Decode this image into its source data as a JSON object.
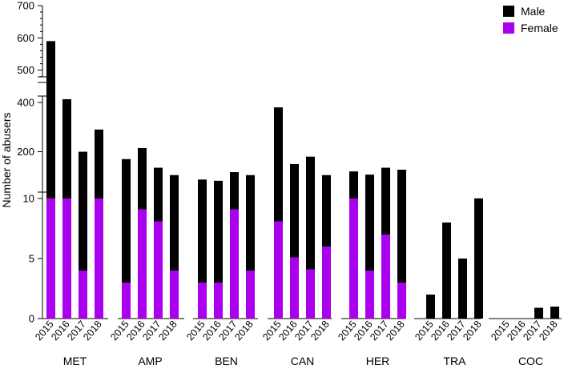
{
  "chart_data": {
    "type": "bar",
    "stacked": true,
    "ylabel": "Number of abusers",
    "ylim": [
      0,
      700
    ],
    "y_tick_labels": [
      "0",
      "5",
      "10",
      "200",
      "400",
      "500",
      "600",
      "700"
    ],
    "y_axis_breaks": "broken axis with segments 0-10, 10-400 and 400-700",
    "legend": {
      "placement": "top-right"
    },
    "categories": [
      "MET",
      "AMP",
      "BEN",
      "CAN",
      "HER",
      "TRA",
      "COC"
    ],
    "years": [
      "2015",
      "2016",
      "2017",
      "2018"
    ],
    "series": [
      {
        "name": "Male",
        "color": "#000000",
        "totals": {
          "MET": [
            590,
            410,
            200,
            290
          ],
          "AMP": [
            170,
            215,
            135,
            105
          ],
          "BEN": [
            87,
            82,
            117,
            105
          ],
          "CAN": [
            380,
            150,
            180,
            105
          ],
          "HER": [
            120,
            107,
            135,
            127
          ],
          "TRA": [
            2,
            8,
            5,
            10.5
          ],
          "COC": [
            0,
            0,
            0.9,
            1
          ]
        }
      },
      {
        "name": "Female",
        "color": "#aa00ee",
        "values": {
          "MET": [
            11,
            10.4,
            4,
            10.4
          ],
          "AMP": [
            3,
            9.1,
            8.1,
            4
          ],
          "BEN": [
            3,
            3,
            9.1,
            4
          ],
          "CAN": [
            8.1,
            5.1,
            4.1,
            6
          ],
          "HER": [
            10.2,
            4,
            7,
            3
          ],
          "TRA": [
            0,
            0,
            0,
            0
          ],
          "COC": [
            0,
            0,
            0,
            0
          ]
        }
      }
    ]
  }
}
